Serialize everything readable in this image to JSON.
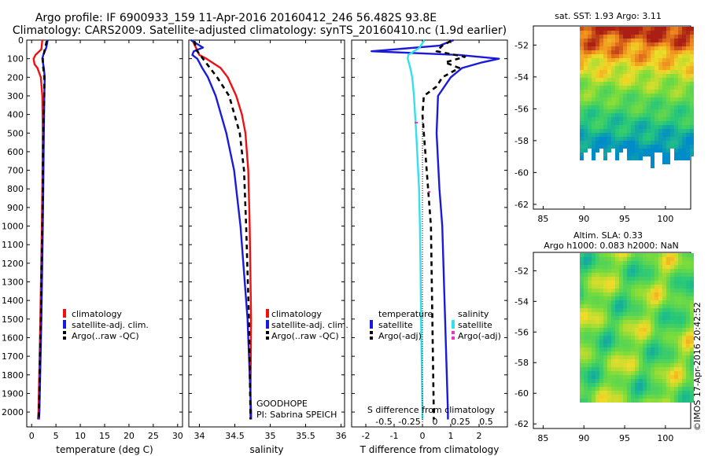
{
  "header": {
    "line1": "Argo profile: IF 6900933_159 11-Apr-2016 20160412_246 56.482S 93.8E",
    "line2": "Climatology: CARS2009. Satellite-adjusted climatology: synTS_20160410.nc (1.9d earlier)"
  },
  "colors": {
    "climatology": "#ee1111",
    "satellite": "#1a1adc",
    "argo": "#000000",
    "salinity_satellite": "#33e0ee",
    "flag_marker": "#ee33cc"
  },
  "legend_ts": {
    "climatology": "climatology",
    "satellite": "satellite-adj. clim.",
    "argo": "Argo(..raw -QC)"
  },
  "legend_diff": {
    "temperature_head": "temperature",
    "salinity_head": "salinity",
    "satellite": "satellite",
    "argo": "Argo(-adj)"
  },
  "float_info": {
    "project": "GOODHOPE",
    "pi": "PI: Sabrina SPEICH"
  },
  "map_sst": {
    "title": "sat. SST: 1.93 Argo: 3.11",
    "xticks": [
      "85",
      "90",
      "95",
      "100"
    ],
    "yticks": [
      "-52",
      "-54",
      "-56",
      "-58",
      "-60",
      "-62"
    ]
  },
  "map_sla": {
    "title1": "Altim. SLA: 0.33",
    "title2": "Argo h1000: 0.083 h2000: NaN",
    "xticks": [
      "85",
      "90",
      "95",
      "100"
    ],
    "yticks": [
      "-52",
      "-54",
      "-56",
      "-58",
      "-60",
      "-62"
    ]
  },
  "credit": "©IMOS 17-Apr-2016 20:42:52",
  "chart_data": [
    {
      "type": "line",
      "xlabel": "temperature (deg C)",
      "ylabel": "",
      "xlim": [
        -1,
        31
      ],
      "ylim": [
        2080,
        0
      ],
      "xticks": [
        0,
        5,
        10,
        15,
        20,
        25,
        30
      ],
      "yticks": [
        0,
        100,
        200,
        300,
        400,
        500,
        600,
        700,
        800,
        900,
        1000,
        1100,
        1200,
        1300,
        1400,
        1500,
        1600,
        1700,
        1800,
        1900,
        2000
      ],
      "series": [
        {
          "name": "climatology",
          "depth": [
            0,
            50,
            80,
            100,
            130,
            150,
            200,
            300,
            500,
            800,
            1000,
            1500,
            2000,
            2040
          ],
          "values": [
            2.2,
            2.0,
            0.8,
            0.4,
            0.6,
            1.2,
            1.9,
            2.2,
            2.3,
            2.2,
            2.1,
            1.8,
            1.4,
            1.3
          ]
        },
        {
          "name": "satellite-adj. clim.",
          "depth": [
            0,
            40,
            80,
            100,
            150,
            200,
            300,
            500,
            800,
            1000,
            1500,
            2000,
            2040
          ],
          "values": [
            3.3,
            3.0,
            2.4,
            2.2,
            2.5,
            2.7,
            2.6,
            2.5,
            2.4,
            2.3,
            2.0,
            1.6,
            1.5
          ]
        },
        {
          "name": "Argo(..raw -QC)",
          "depth": [
            5,
            50,
            100,
            150,
            200,
            300,
            500,
            800,
            1000,
            1500,
            2000,
            2040
          ],
          "values": [
            3.1,
            2.7,
            2.3,
            2.4,
            2.6,
            2.6,
            2.4,
            2.3,
            2.2,
            1.9,
            1.5,
            1.5
          ]
        }
      ]
    },
    {
      "type": "line",
      "xlabel": "salinity",
      "xlim": [
        33.85,
        36.05
      ],
      "ylim": [
        2080,
        0
      ],
      "xticks": [
        34,
        34.5,
        35,
        35.5,
        36
      ],
      "xticklabels": [
        "34",
        "34.5",
        "35",
        "35.5",
        "36"
      ],
      "series": [
        {
          "name": "climatology",
          "depth": [
            0,
            40,
            80,
            100,
            150,
            200,
            300,
            400,
            500,
            700,
            1000,
            1500,
            2000,
            2040
          ],
          "values": [
            33.9,
            33.95,
            34.0,
            34.1,
            34.3,
            34.4,
            34.52,
            34.6,
            34.65,
            34.69,
            34.71,
            34.73,
            34.72,
            34.72
          ]
        },
        {
          "name": "satellite-adj. clim.",
          "depth": [
            0,
            40,
            60,
            80,
            100,
            150,
            200,
            300,
            500,
            700,
            1000,
            1500,
            2000,
            2040
          ],
          "values": [
            33.88,
            34.05,
            33.92,
            33.9,
            33.97,
            34.04,
            34.12,
            34.23,
            34.38,
            34.49,
            34.58,
            34.68,
            34.73,
            34.73
          ]
        },
        {
          "name": "Argo(..raw -QC)",
          "depth": [
            5,
            50,
            100,
            150,
            200,
            300,
            500,
            700,
            1000,
            1500,
            2000,
            2040
          ],
          "values": [
            33.93,
            33.95,
            34.05,
            34.15,
            34.25,
            34.42,
            34.57,
            34.63,
            34.66,
            34.7,
            34.72,
            34.72
          ]
        }
      ]
    },
    {
      "type": "line",
      "xlabel": "T difference from climatology",
      "xlabel_top": "S difference from climatology",
      "xlim": [
        -2.5,
        3.0
      ],
      "ylim": [
        2080,
        0
      ],
      "xticks": [
        -2,
        -1,
        0,
        1,
        2
      ],
      "top_ticks": [
        -0.5,
        -0.25,
        0,
        0.25,
        0.5
      ],
      "top_tick_labels": [
        "-0.5",
        "-0.25",
        "0",
        "0.25",
        "0.5"
      ],
      "series": [
        {
          "name": "temperature satellite",
          "depth": [
            0,
            30,
            60,
            80,
            100,
            120,
            150,
            200,
            300,
            500,
            800,
            1000,
            1500,
            2000,
            2040
          ],
          "values": [
            1.1,
            0.6,
            -1.8,
            1.3,
            2.7,
            2.1,
            1.4,
            1.0,
            0.55,
            0.5,
            0.6,
            0.7,
            0.8,
            0.9,
            0.9
          ]
        },
        {
          "name": "temperature Argo(-adj)",
          "depth": [
            5,
            30,
            60,
            90,
            120,
            150,
            200,
            250,
            300,
            400,
            800,
            1000,
            1500,
            2000,
            2040
          ],
          "values": [
            1.0,
            0.7,
            0.5,
            1.5,
            0.8,
            1.3,
            0.7,
            0.5,
            0.05,
            0.0,
            0.2,
            0.3,
            0.35,
            0.4,
            0.4
          ]
        },
        {
          "name": "salinity satellite",
          "depth": [
            0,
            40,
            80,
            100,
            150,
            200,
            300,
            500,
            800,
            1000,
            1200,
            1500,
            2000,
            2040
          ],
          "values": [
            0.07,
            -0.1,
            -0.5,
            -0.52,
            -0.43,
            -0.36,
            -0.3,
            -0.22,
            -0.12,
            -0.09,
            -0.07,
            -0.05,
            0.0,
            0.0
          ]
        }
      ]
    }
  ]
}
